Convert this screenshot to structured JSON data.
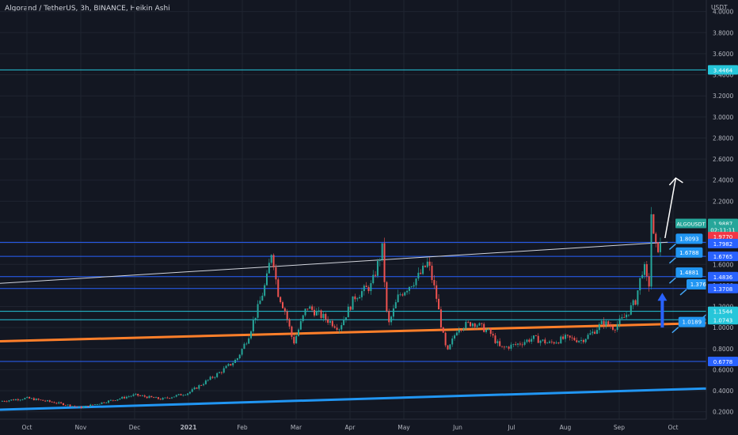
{
  "header": {
    "title": "Algorand / TetherUS, 3h, BINANCE, Heikin Ashi"
  },
  "chart_data": {
    "type": "candlestick",
    "symbol": "ALGOUSDT",
    "currency": "USDT",
    "ylim": [
      0.13,
      4.05
    ],
    "y_ticks": [
      "0.2000",
      "0.4000",
      "0.6000",
      "0.8000",
      "1.0000",
      "1.2000",
      "1.4000",
      "1.6000",
      "1.8000",
      "2.0000",
      "2.2000",
      "2.4000",
      "2.6000",
      "2.8000",
      "3.0000",
      "3.2000",
      "3.4000",
      "3.6000",
      "3.8000",
      "4.0000"
    ],
    "x_ticks": [
      {
        "label": "Oct",
        "t": 0.5
      },
      {
        "label": "Nov",
        "t": 1.5
      },
      {
        "label": "Dec",
        "t": 2.5
      },
      {
        "label": "2021",
        "t": 3.5
      },
      {
        "label": "Feb",
        "t": 4.5
      },
      {
        "label": "Mar",
        "t": 5.5
      },
      {
        "label": "Apr",
        "t": 6.5
      },
      {
        "label": "May",
        "t": 7.5
      },
      {
        "label": "Jun",
        "t": 8.5
      },
      {
        "label": "Jul",
        "t": 9.5
      },
      {
        "label": "Aug",
        "t": 10.5
      },
      {
        "label": "Sep",
        "t": 11.5
      },
      {
        "label": "Oct",
        "t": 12.5
      }
    ],
    "price_path": [
      [
        0,
        0.3
      ],
      [
        0.5,
        0.33
      ],
      [
        1,
        0.29
      ],
      [
        1.5,
        0.24
      ],
      [
        2,
        0.3
      ],
      [
        2.5,
        0.36
      ],
      [
        3,
        0.32
      ],
      [
        3.5,
        0.38
      ],
      [
        3.8,
        0.48
      ],
      [
        4.1,
        0.58
      ],
      [
        4.4,
        0.7
      ],
      [
        4.6,
        0.9
      ],
      [
        4.8,
        1.2
      ],
      [
        4.95,
        1.45
      ],
      [
        5.05,
        1.75
      ],
      [
        5.15,
        1.35
      ],
      [
        5.3,
        1.15
      ],
      [
        5.45,
        0.85
      ],
      [
        5.7,
        1.2
      ],
      [
        6.0,
        1.1
      ],
      [
        6.3,
        1.0
      ],
      [
        6.6,
        1.3
      ],
      [
        6.9,
        1.4
      ],
      [
        7.1,
        1.75
      ],
      [
        7.2,
        1.0
      ],
      [
        7.4,
        1.3
      ],
      [
        7.6,
        1.4
      ],
      [
        7.8,
        1.5
      ],
      [
        7.95,
        1.62
      ],
      [
        8.1,
        1.3
      ],
      [
        8.2,
        1.0
      ],
      [
        8.3,
        0.75
      ],
      [
        8.5,
        1.0
      ],
      [
        8.8,
        1.05
      ],
      [
        9.1,
        0.95
      ],
      [
        9.3,
        0.8
      ],
      [
        9.6,
        0.84
      ],
      [
        9.9,
        0.9
      ],
      [
        10.2,
        0.85
      ],
      [
        10.5,
        0.9
      ],
      [
        10.8,
        0.88
      ],
      [
        11.0,
        0.95
      ],
      [
        11.2,
        1.05
      ],
      [
        11.4,
        1.0
      ],
      [
        11.6,
        1.1
      ],
      [
        11.8,
        1.25
      ],
      [
        11.95,
        1.6
      ],
      [
        12.05,
        1.35
      ],
      [
        12.1,
        2.15
      ],
      [
        12.15,
        1.75
      ],
      [
        12.3,
        1.78
      ]
    ],
    "horizontal_levels": [
      {
        "price": 3.4464,
        "color": "#26c6da"
      },
      {
        "price": 1.8093,
        "color": "#2962ff"
      },
      {
        "price": 1.6765,
        "color": "#2962ff"
      },
      {
        "price": 1.4836,
        "color": "#2962ff"
      },
      {
        "price": 1.3708,
        "color": "#2962ff"
      },
      {
        "price": 1.1544,
        "color": "#26c6da"
      },
      {
        "price": 1.0743,
        "color": "#26c6da"
      },
      {
        "price": 0.6778,
        "color": "#2962ff"
      }
    ],
    "trend_lines": [
      {
        "color": "#ff7f2a",
        "width": 3,
        "from": [
          0,
          0.87
        ],
        "to": [
          13.7,
          1.05
        ]
      },
      {
        "color": "#2196f3",
        "width": 3,
        "from": [
          0,
          0.22
        ],
        "to": [
          13.7,
          0.43
        ]
      },
      {
        "color": "#d1d4dc",
        "width": 1,
        "from": [
          0,
          1.42
        ],
        "to": [
          12.4,
          1.81
        ]
      }
    ],
    "callouts": [
      {
        "label": "1.8093",
        "price": 1.8093,
        "t": 12.55
      },
      {
        "label": "1.6788",
        "price": 1.6788,
        "t": 12.55
      },
      {
        "label": "1.4881",
        "price": 1.4881,
        "t": 12.55
      },
      {
        "label": "1.3769",
        "price": 1.3769,
        "t": 12.75
      },
      {
        "label": "1.1526",
        "price": 1.1526,
        "t": 13.15
      },
      {
        "label": "1.0189",
        "price": 1.0189,
        "t": 12.6
      }
    ],
    "projection_arrow": {
      "from": [
        12.35,
        1.85
      ],
      "to": [
        12.55,
        2.42
      ],
      "color": "#ffffff"
    },
    "up_arrow": {
      "at": 12.3,
      "from": 1.0,
      "to": 1.33,
      "color": "#2962ff"
    },
    "price_labels": [
      {
        "text": "3.4464",
        "price": 3.4464,
        "bg": "#26c6da",
        "fg": "#ffffff"
      },
      {
        "text": "ALGOUSDT",
        "price": 1.9887,
        "bg": "#26a69a",
        "fg": "#ffffff",
        "extra_text": "1.9887"
      },
      {
        "text": "02:11:11",
        "price": 1.9297,
        "bg": "#26a69a",
        "fg": "#ffffff"
      },
      {
        "text": "1.9770",
        "price": 1.8637,
        "bg": "#f23645",
        "fg": "#ffffff"
      },
      {
        "text": "1.7982",
        "price": 1.7982,
        "bg": "#2962ff",
        "fg": "#ffffff"
      },
      {
        "text": "1.6765",
        "price": 1.6765,
        "bg": "#2962ff",
        "fg": "#ffffff"
      },
      {
        "text": "1.4836",
        "price": 1.4836,
        "bg": "#2962ff",
        "fg": "#ffffff"
      },
      {
        "text": "1.3708",
        "price": 1.3708,
        "bg": "#2962ff",
        "fg": "#ffffff"
      },
      {
        "text": "1.1544",
        "price": 1.1544,
        "bg": "#26c6da",
        "fg": "#ffffff"
      },
      {
        "text": "1.0743",
        "price": 1.0743,
        "bg": "#26c6da",
        "fg": "#ffffff"
      },
      {
        "text": "0.6778",
        "price": 0.6778,
        "bg": "#2962ff",
        "fg": "#ffffff"
      }
    ]
  }
}
